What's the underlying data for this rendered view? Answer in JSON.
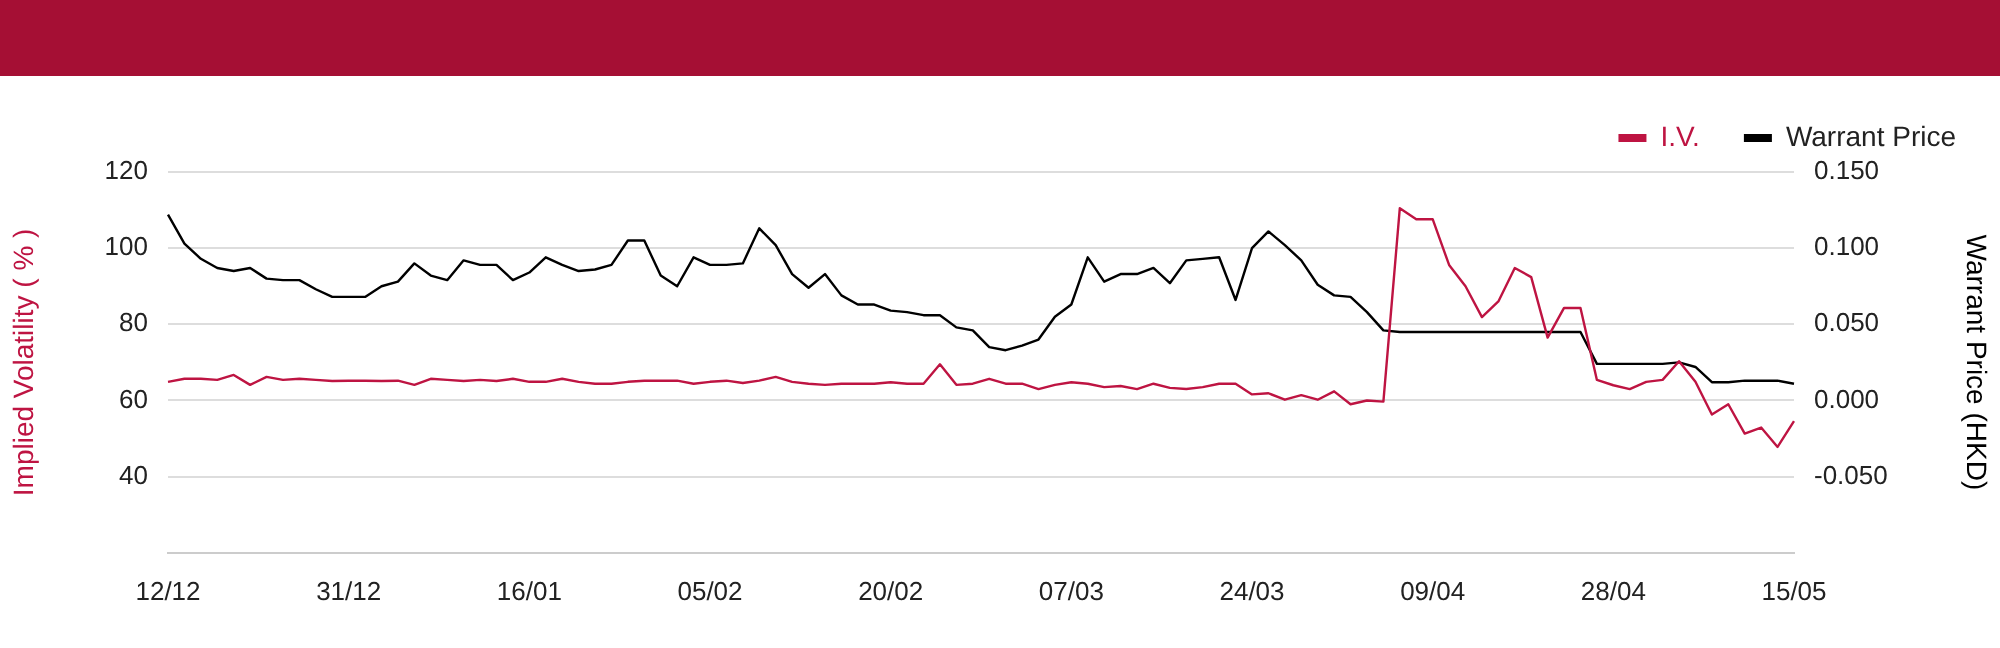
{
  "chart_data": {
    "type": "line",
    "categories": [
      "12/12",
      null,
      null,
      null,
      null,
      null,
      null,
      null,
      null,
      null,
      null,
      "31/12",
      null,
      null,
      null,
      null,
      null,
      null,
      null,
      null,
      null,
      null,
      "16/01",
      null,
      null,
      null,
      null,
      null,
      null,
      null,
      null,
      null,
      null,
      "05/02",
      null,
      null,
      null,
      null,
      null,
      null,
      null,
      null,
      null,
      null,
      "20/02",
      null,
      null,
      null,
      null,
      null,
      null,
      null,
      null,
      null,
      null,
      "07/03",
      null,
      null,
      null,
      null,
      null,
      null,
      null,
      null,
      null,
      null,
      "24/03",
      null,
      null,
      null,
      null,
      null,
      null,
      null,
      null,
      null,
      null,
      "09/04",
      null,
      null,
      null,
      null,
      null,
      null,
      null,
      null,
      null,
      null,
      "28/04",
      null,
      null,
      null,
      null,
      null,
      null,
      null,
      null,
      null,
      null,
      "15/05"
    ],
    "series": [
      {
        "name": "I.V.",
        "color": "#be1442",
        "values": [
          64.9,
          65.7,
          65.7,
          65.4,
          66.7,
          64.1,
          66.2,
          65.4,
          65.7,
          65.4,
          65.1,
          65.2,
          65.2,
          65.1,
          65.2,
          64.1,
          65.7,
          65.4,
          65.1,
          65.4,
          65.1,
          65.7,
          64.9,
          64.9,
          65.7,
          64.9,
          64.4,
          64.4,
          64.9,
          65.2,
          65.2,
          65.2,
          64.4,
          64.9,
          65.2,
          64.6,
          65.2,
          66.2,
          64.9,
          64.4,
          64.1,
          64.4,
          64.4,
          64.4,
          64.8,
          64.4,
          64.4,
          69.5,
          64.1,
          64.4,
          65.7,
          64.4,
          64.4,
          63.0,
          64.1,
          64.8,
          64.4,
          63.5,
          63.8,
          63.0,
          64.4,
          63.3,
          63.0,
          63.5,
          64.4,
          64.4,
          61.6,
          61.9,
          60.2,
          61.4,
          60.2,
          62.4,
          59.0,
          60.0,
          59.7,
          110.5,
          107.6,
          107.6,
          95.6,
          90.0,
          81.9,
          86.0,
          94.8,
          92.4,
          76.5,
          84.3,
          84.3,
          65.4,
          64.0,
          63.0,
          64.9,
          65.4,
          70.3,
          64.9,
          56.3,
          59.0,
          51.3,
          52.9,
          47.8,
          54.6
        ]
      },
      {
        "name": "Warrant Price",
        "color": "#000000",
        "axis": "y2",
        "values": [
          0.122,
          0.103,
          0.093,
          0.087,
          0.085,
          0.087,
          0.08,
          0.079,
          0.079,
          0.073,
          0.068,
          0.068,
          0.068,
          0.075,
          0.078,
          0.09,
          0.082,
          0.079,
          0.092,
          0.089,
          0.089,
          0.079,
          0.084,
          0.094,
          0.089,
          0.085,
          0.086,
          0.089,
          0.105,
          0.105,
          0.082,
          0.075,
          0.094,
          0.089,
          0.089,
          0.09,
          0.113,
          0.102,
          0.083,
          0.074,
          0.083,
          0.069,
          0.063,
          0.063,
          0.059,
          0.058,
          0.056,
          0.056,
          0.048,
          0.046,
          0.035,
          0.033,
          0.036,
          0.04,
          0.055,
          0.063,
          0.094,
          0.078,
          0.083,
          0.083,
          0.087,
          0.077,
          0.092,
          0.093,
          0.094,
          0.066,
          0.1,
          0.111,
          0.102,
          0.092,
          0.076,
          0.069,
          0.068,
          0.058,
          0.046,
          0.045,
          0.045,
          0.045,
          0.045,
          0.045,
          0.045,
          0.045,
          0.045,
          0.045,
          0.045,
          0.045,
          0.045,
          0.024,
          0.024,
          0.024,
          0.024,
          0.024,
          0.025,
          0.022,
          0.012,
          0.012,
          0.013,
          0.013,
          0.013,
          0.011
        ]
      }
    ],
    "ylabel": "Implied Volatility ( % )",
    "y2label": "Warrant Price (HKD)",
    "ylim": [
      20,
      120
    ],
    "yticks": [
      40,
      60,
      80,
      100,
      120
    ],
    "y2lim": [
      -0.1,
      0.15
    ],
    "y2ticks": [
      {
        "value": -0.05,
        "label": "-0.050"
      },
      {
        "value": 0,
        "label": "0.000"
      },
      {
        "value": 0.05,
        "label": "0.050"
      },
      {
        "value": 0.1,
        "label": "0.100"
      },
      {
        "value": 0.15,
        "label": "0.150"
      }
    ],
    "grid": "y",
    "legend": "top right"
  }
}
